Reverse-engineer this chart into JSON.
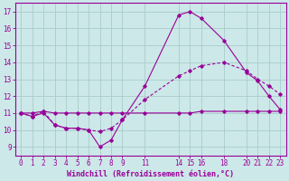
{
  "xlabel": "Windchill (Refroidissement éolien,°C)",
  "background_color": "#cce8e8",
  "grid_color": "#aacccc",
  "line_color": "#990099",
  "x_ticks": [
    0,
    1,
    2,
    3,
    4,
    5,
    6,
    7,
    8,
    9,
    11,
    14,
    15,
    16,
    18,
    20,
    21,
    22,
    23
  ],
  "ylim": [
    8.5,
    17.5
  ],
  "xlim": [
    -0.5,
    23.5
  ],
  "line1_x": [
    0,
    1,
    2,
    3,
    4,
    5,
    6,
    7,
    8,
    9,
    11,
    14,
    15,
    16,
    18,
    20,
    21,
    22,
    23
  ],
  "line1_y": [
    11.0,
    10.8,
    11.0,
    10.3,
    10.1,
    10.1,
    10.0,
    9.0,
    9.4,
    10.6,
    12.6,
    16.8,
    17.0,
    16.6,
    15.3,
    13.4,
    12.9,
    12.0,
    11.2
  ],
  "line2_x": [
    0,
    1,
    2,
    3,
    4,
    5,
    6,
    7,
    8,
    9,
    11,
    14,
    15,
    16,
    18,
    20,
    21,
    22,
    23
  ],
  "line2_y": [
    11.0,
    10.8,
    11.1,
    10.3,
    10.1,
    10.1,
    10.0,
    9.9,
    10.1,
    10.6,
    11.8,
    13.2,
    13.5,
    13.8,
    14.0,
    13.5,
    13.0,
    12.6,
    12.1
  ],
  "line3_x": [
    0,
    1,
    2,
    3,
    4,
    5,
    6,
    7,
    8,
    9,
    11,
    14,
    15,
    16,
    18,
    20,
    21,
    22,
    23
  ],
  "line3_y": [
    11.0,
    11.0,
    11.1,
    11.0,
    11.0,
    11.0,
    11.0,
    11.0,
    11.0,
    11.0,
    11.0,
    11.0,
    11.0,
    11.1,
    11.1,
    11.1,
    11.1,
    11.1,
    11.1
  ],
  "yticks": [
    9,
    10,
    11,
    12,
    13,
    14,
    15,
    16,
    17
  ],
  "tick_fontsize": 5.5,
  "xlabel_fontsize": 6.0
}
